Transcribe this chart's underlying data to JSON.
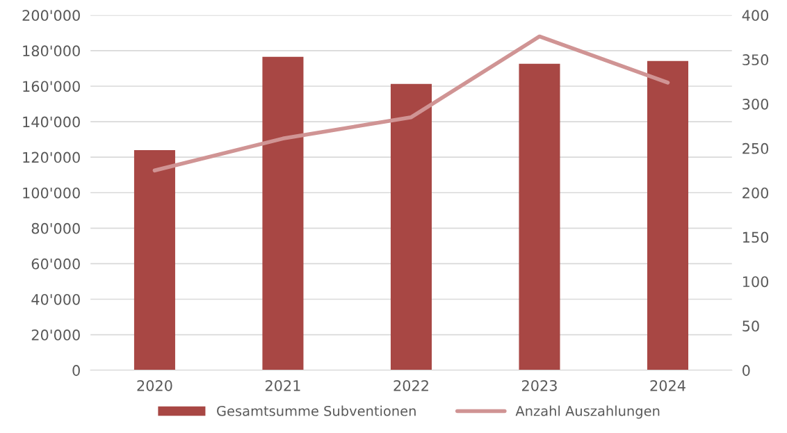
{
  "chart_data": {
    "type": "bar",
    "categories": [
      "2020",
      "2021",
      "2022",
      "2023",
      "2024"
    ],
    "series": [
      {
        "name": "Gesamtsumme Subventionen",
        "color": "#a84744",
        "values": [
          124000,
          176500,
          161300,
          172600,
          174200
        ]
      },
      {
        "name": "Anzahl Auszahlungen",
        "type": "line",
        "axis": "y2",
        "color": "#d09494",
        "values": [
          225,
          261,
          285,
          376,
          324
        ]
      }
    ],
    "ylim": [
      0,
      200000
    ],
    "yticks": [
      0,
      {
        "value": 20000,
        "label": "20'000"
      },
      {
        "value": 40000,
        "label": "40'000"
      },
      {
        "value": 60000,
        "label": "60'000"
      },
      {
        "value": 80000,
        "label": "80'000"
      },
      {
        "value": 100000,
        "label": "100'000"
      },
      {
        "value": 120000,
        "label": "120'000"
      },
      {
        "value": 140000,
        "label": "140'000"
      },
      {
        "value": 160000,
        "label": "160'000"
      },
      {
        "value": 180000,
        "label": "180'000"
      },
      {
        "value": 200000,
        "label": "200'000"
      }
    ],
    "y2lim": [
      0,
      400
    ],
    "y2ticks": [
      0,
      50,
      100,
      150,
      200,
      250,
      300,
      350,
      400
    ],
    "grid": "y",
    "legend": "bottom",
    "marker": "none",
    "line_style": "solid"
  }
}
